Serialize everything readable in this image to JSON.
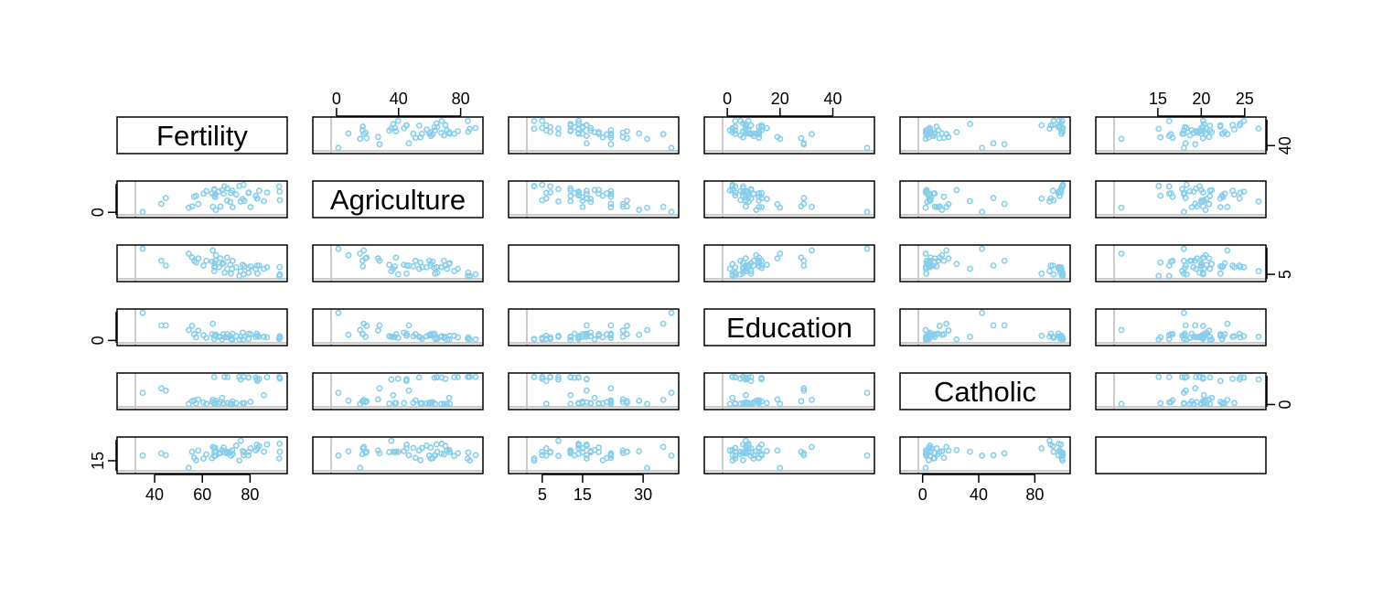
{
  "chart_data": {
    "type": "scatter_matrix",
    "point_color": "#87ceeb",
    "variables": [
      {
        "label": "Fertility",
        "x_axis_side": "bottom",
        "y_axis_side": "right",
        "lim": [
          32.7,
          94.8
        ],
        "xticks": [
          40,
          60,
          80
        ],
        "yticks": [
          40
        ],
        "values": [
          80.2,
          83.1,
          92.5,
          85.8,
          76.9,
          76.1,
          83.8,
          92.4,
          82.4,
          82.9,
          87.1,
          64.1,
          66.9,
          68.9,
          61.7,
          68.3,
          71.7,
          55.7,
          54.3,
          65.1,
          65.5,
          65.0,
          56.6,
          57.4,
          72.5,
          74.2,
          72.0,
          60.5,
          58.3,
          65.4,
          75.5,
          69.3,
          77.3,
          70.5,
          79.4,
          65.0,
          92.2,
          79.3,
          70.4,
          65.7,
          72.7,
          64.4,
          77.6,
          67.6,
          35.0,
          44.7,
          42.8
        ]
      },
      {
        "label": "Agriculture",
        "x_axis_side": "top",
        "y_axis_side": "left",
        "lim": [
          -2.3,
          93.2
        ],
        "xticks": [
          0,
          40,
          80
        ],
        "yticks": [
          0
        ],
        "values": [
          17.0,
          45.1,
          39.7,
          36.5,
          43.5,
          35.3,
          70.2,
          67.8,
          53.3,
          45.2,
          64.5,
          62.0,
          67.5,
          60.7,
          69.3,
          72.6,
          34.0,
          19.4,
          15.2,
          73.0,
          59.8,
          55.1,
          50.9,
          54.1,
          71.2,
          58.1,
          63.5,
          60.8,
          26.8,
          49.5,
          85.9,
          84.9,
          89.7,
          78.2,
          64.9,
          75.9,
          84.6,
          63.1,
          38.4,
          7.7,
          16.7,
          17.6,
          37.6,
          18.7,
          1.2,
          46.6,
          27.7
        ]
      },
      {
        "label": null,
        "x_axis_side": "bottom",
        "y_axis_side": "right",
        "lim": [
          1.64,
          38.36
        ],
        "xticks": [
          5,
          15,
          30
        ],
        "yticks": [
          5
        ],
        "values": [
          15,
          6,
          5,
          12,
          17,
          9,
          16,
          14,
          12,
          16,
          14,
          21,
          14,
          19,
          22,
          18,
          17,
          26,
          31,
          19,
          22,
          14,
          22,
          20,
          12,
          14,
          6,
          16,
          25,
          15,
          3,
          7,
          5,
          12,
          7,
          9,
          3,
          13,
          26,
          29,
          22,
          35,
          15,
          25,
          37,
          16,
          22
        ]
      },
      {
        "label": "Education",
        "x_axis_side": "top",
        "y_axis_side": "left",
        "lim": [
          -1.08,
          55.08
        ],
        "xticks": [
          0,
          20,
          40
        ],
        "yticks": [
          0
        ],
        "values": [
          12,
          9,
          5,
          7,
          15,
          7,
          7,
          8,
          7,
          13,
          6,
          12,
          7,
          12,
          5,
          2,
          8,
          28,
          20,
          9,
          10,
          3,
          12,
          6,
          1,
          8,
          3,
          10,
          19,
          8,
          2,
          6,
          2,
          6,
          3,
          9,
          3,
          13,
          12,
          11,
          13,
          32,
          7,
          7,
          53,
          29,
          29
        ]
      },
      {
        "label": "Catholic",
        "x_axis_side": "bottom",
        "y_axis_side": "right",
        "lim": [
          -1.76,
          103.9
        ],
        "xticks": [
          0,
          40,
          80
        ],
        "yticks": [
          0
        ],
        "values": [
          9.96,
          84.84,
          93.4,
          33.77,
          5.16,
          90.57,
          92.85,
          97.16,
          97.67,
          91.38,
          98.61,
          8.52,
          2.27,
          4.43,
          2.82,
          24.2,
          3.3,
          12.11,
          2.15,
          2.84,
          5.23,
          4.52,
          15.14,
          4.2,
          2.4,
          5.23,
          2.56,
          7.72,
          18.46,
          6.1,
          99.71,
          99.68,
          100,
          98.96,
          98.22,
          99.06,
          99.46,
          96.83,
          5.62,
          13.79,
          11.22,
          16.92,
          4.97,
          8.65,
          42.34,
          50.43,
          58.33
        ]
      },
      {
        "label": null,
        "x_axis_side": "top",
        "y_axis_side": "left",
        "lim": [
          10.17,
          27.23
        ],
        "xticks": [
          15,
          20,
          25
        ],
        "yticks": [
          15
        ],
        "values": [
          22.2,
          22.2,
          20.2,
          20.3,
          20.6,
          26.6,
          23.6,
          24.9,
          21.0,
          24.4,
          24.5,
          16.5,
          19.1,
          22.7,
          18.7,
          21.2,
          20.0,
          20.2,
          10.8,
          20.0,
          18.0,
          22.4,
          16.7,
          15.3,
          21.0,
          23.8,
          18.0,
          16.3,
          20.9,
          22.5,
          15.1,
          19.8,
          18.3,
          19.4,
          20.2,
          17.8,
          16.3,
          18.1,
          20.3,
          20.5,
          18.9,
          23.0,
          20.0,
          19.5,
          18.0,
          18.2,
          19.3
        ]
      }
    ]
  }
}
